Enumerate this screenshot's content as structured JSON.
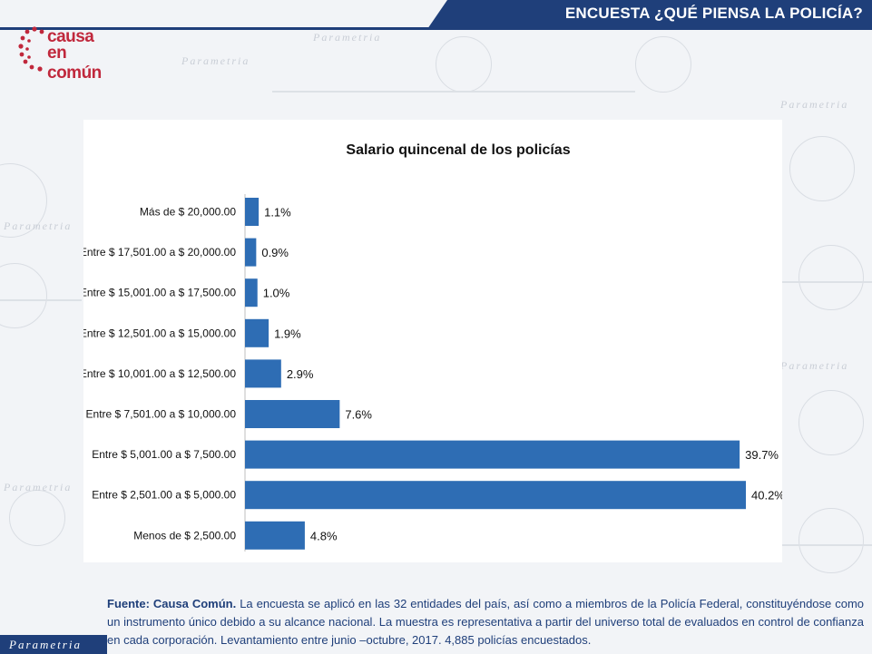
{
  "header": {
    "title": "ENCUESTA ¿QUÉ PIENSA LA POLICÍA?"
  },
  "logo": {
    "line1": "causa",
    "line2": "en común",
    "color": "#c0283c"
  },
  "watermark": {
    "text": "Parametria"
  },
  "chart_data": {
    "type": "bar",
    "orientation": "horizontal",
    "title": "Salario quincenal de los policías",
    "categories": [
      "Más de $ 20,000.00",
      "Entre $ 17,501.00 a $ 20,000.00",
      "Entre $ 15,001.00 a $ 17,500.00",
      "Entre $ 12,501.00 a $ 15,000.00",
      "Entre $ 10,001.00 a $ 12,500.00",
      "Entre $ 7,501.00 a $ 10,000.00",
      "Entre $ 5,001.00 a $ 7,500.00",
      "Entre $ 2,501.00 a $ 5,000.00",
      "Menos de $ 2,500.00"
    ],
    "values": [
      1.1,
      0.9,
      1.0,
      1.9,
      2.9,
      7.6,
      39.7,
      40.2,
      4.8
    ],
    "value_labels": [
      "1.1%",
      "0.9%",
      "1.0%",
      "1.9%",
      "2.9%",
      "7.6%",
      "39.7%",
      "40.2%",
      "4.8%"
    ],
    "bar_color": "#2e6db4",
    "xlim": [
      0,
      40.2
    ],
    "grid": false,
    "legend": "none"
  },
  "footer": {
    "source_label": "Fuente: Causa Común.",
    "text": " La encuesta se aplicó en las 32 entidades del país, así como a miembros de la Policía Federal, constituyéndose como un instrumento único debido a su alcance nacional. La muestra es representativa a partir del universo total de evaluados en control de confianza en cada corporación. Levantamiento entre junio –octubre, 2017. 4,885 policías encuestados."
  },
  "brand_tag": "Parametria",
  "colors": {
    "header_bg": "#1f3f7a",
    "footer_text": "#1f3f7a"
  }
}
